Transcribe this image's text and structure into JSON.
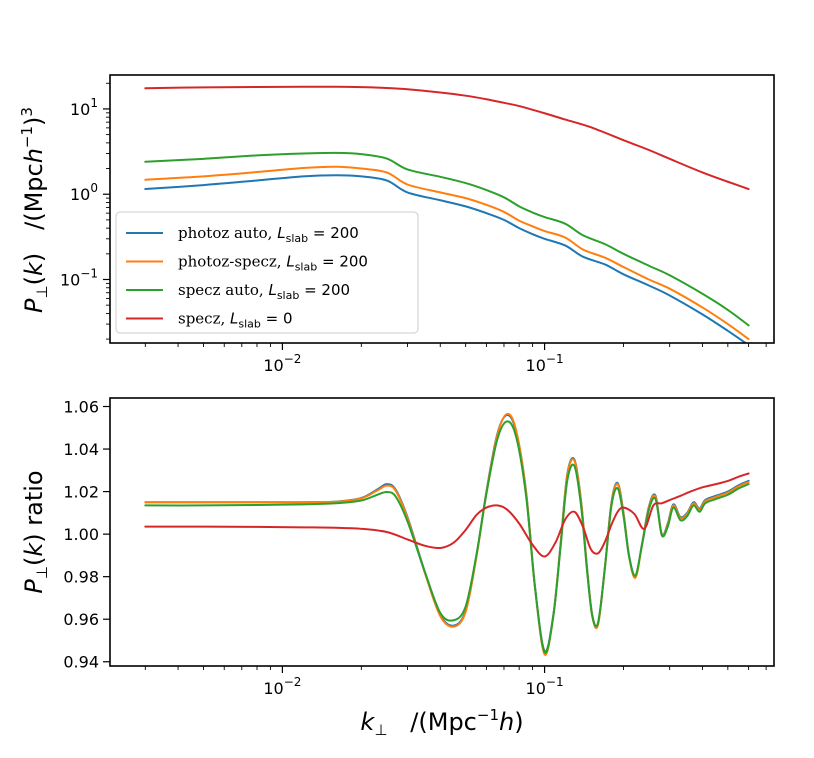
{
  "chart_data": [
    {
      "type": "line",
      "xscale": "log",
      "yscale": "log",
      "xlim": [
        0.0022,
        0.75
      ],
      "ylim": [
        0.018,
        25
      ],
      "xticks": [
        {
          "value": 0.01,
          "base": "10",
          "exp": "−2"
        },
        {
          "value": 0.1,
          "base": "10",
          "exp": "−1"
        }
      ],
      "yticks": [
        {
          "value": 10,
          "base": "10",
          "exp": "1"
        },
        {
          "value": 1,
          "base": "10",
          "exp": "0"
        },
        {
          "value": 0.1,
          "base": "10",
          "exp": "−1"
        }
      ],
      "ylabel": {
        "p": "P",
        "sub": "⊥",
        "open": "(",
        "k": "k",
        "close": ")",
        "units": "/(Mpc",
        "h": "h",
        "minus1": "−1",
        "rest": ")",
        "cube": "3"
      },
      "legend": {
        "position": "lower-left",
        "entries": [
          {
            "prefix": "photoz auto, ",
            "var": "L",
            "sub": "slab",
            "eq": " = 200",
            "color": "#1f77b4"
          },
          {
            "prefix": "photoz-specz, ",
            "var": "L",
            "sub": "slab",
            "eq": " = 200",
            "color": "#ff7f0e"
          },
          {
            "prefix": "specz auto, ",
            "var": "L",
            "sub": "slab",
            "eq": " = 200",
            "color": "#2ca02c"
          },
          {
            "prefix": "specz, ",
            "var": "L",
            "sub": "slab",
            "eq": " = 0",
            "color": "#d62728"
          }
        ]
      },
      "series": [
        {
          "name": "photoz auto",
          "color": "#1f77b4",
          "x": [
            0.003,
            0.005,
            0.008,
            0.012,
            0.016,
            0.02,
            0.025,
            0.03,
            0.04,
            0.05,
            0.06,
            0.07,
            0.08,
            0.09,
            0.1,
            0.12,
            0.14,
            0.17,
            0.2,
            0.25,
            0.3,
            0.4,
            0.5,
            0.6
          ],
          "y": [
            1.15,
            1.28,
            1.45,
            1.62,
            1.67,
            1.62,
            1.45,
            1.05,
            0.85,
            0.72,
            0.6,
            0.5,
            0.4,
            0.34,
            0.3,
            0.25,
            0.185,
            0.15,
            0.115,
            0.085,
            0.065,
            0.039,
            0.025,
            0.017
          ]
        },
        {
          "name": "photoz-specz",
          "color": "#ff7f0e",
          "x": [
            0.003,
            0.005,
            0.008,
            0.012,
            0.016,
            0.02,
            0.025,
            0.03,
            0.04,
            0.05,
            0.06,
            0.07,
            0.08,
            0.09,
            0.1,
            0.12,
            0.14,
            0.17,
            0.2,
            0.25,
            0.3,
            0.4,
            0.5,
            0.6
          ],
          "y": [
            1.48,
            1.62,
            1.82,
            2.03,
            2.1,
            2.0,
            1.8,
            1.3,
            1.05,
            0.9,
            0.75,
            0.62,
            0.49,
            0.42,
            0.37,
            0.31,
            0.225,
            0.18,
            0.14,
            0.1,
            0.078,
            0.047,
            0.03,
            0.02
          ]
        },
        {
          "name": "specz auto",
          "color": "#2ca02c",
          "x": [
            0.003,
            0.005,
            0.008,
            0.012,
            0.016,
            0.02,
            0.025,
            0.03,
            0.04,
            0.05,
            0.06,
            0.07,
            0.08,
            0.09,
            0.1,
            0.12,
            0.14,
            0.17,
            0.2,
            0.25,
            0.3,
            0.4,
            0.5,
            0.6
          ],
          "y": [
            2.4,
            2.6,
            2.85,
            3.0,
            3.05,
            2.95,
            2.62,
            1.95,
            1.6,
            1.35,
            1.12,
            0.92,
            0.72,
            0.61,
            0.54,
            0.45,
            0.33,
            0.26,
            0.2,
            0.145,
            0.112,
            0.068,
            0.044,
            0.029
          ]
        },
        {
          "name": "specz",
          "color": "#d62728",
          "x": [
            0.003,
            0.005,
            0.008,
            0.012,
            0.016,
            0.02,
            0.025,
            0.03,
            0.04,
            0.05,
            0.06,
            0.07,
            0.08,
            0.1,
            0.12,
            0.15,
            0.2,
            0.25,
            0.3,
            0.4,
            0.5,
            0.6
          ],
          "y": [
            17.5,
            17.9,
            18.1,
            18.2,
            18.2,
            18.0,
            17.6,
            17.0,
            15.6,
            14.3,
            13.0,
            11.8,
            10.8,
            8.9,
            7.5,
            6.1,
            4.3,
            3.3,
            2.6,
            1.8,
            1.4,
            1.15
          ]
        }
      ]
    },
    {
      "type": "line",
      "xscale": "log",
      "yscale": "linear",
      "xlim": [
        0.0022,
        0.75
      ],
      "ylim": [
        0.938,
        1.064
      ],
      "xticks": [
        {
          "value": 0.01,
          "base": "10",
          "exp": "−2"
        },
        {
          "value": 0.1,
          "base": "10",
          "exp": "−1"
        }
      ],
      "yticks": [
        {
          "value": 0.94,
          "label": "0.94"
        },
        {
          "value": 0.96,
          "label": "0.96"
        },
        {
          "value": 0.98,
          "label": "0.98"
        },
        {
          "value": 1.0,
          "label": "1.00"
        },
        {
          "value": 1.02,
          "label": "1.02"
        },
        {
          "value": 1.04,
          "label": "1.04"
        },
        {
          "value": 1.06,
          "label": "1.06"
        }
      ],
      "ylabel": {
        "p": "P",
        "sub": "⊥",
        "open": "(",
        "k": "k",
        "close": ")",
        "word": " ratio"
      },
      "xlabel": {
        "k": "k",
        "sub": "⊥",
        "units": "/(Mpc",
        "minus1": "−1",
        "h": "h",
        "rest": ")"
      },
      "series": [
        {
          "name": "photoz auto",
          "color": "#1f77b4",
          "x": [
            0.003,
            0.005,
            0.008,
            0.012,
            0.016,
            0.02,
            0.023,
            0.025,
            0.027,
            0.03,
            0.035,
            0.04,
            0.045,
            0.05,
            0.055,
            0.06,
            0.066,
            0.072,
            0.078,
            0.085,
            0.092,
            0.1,
            0.108,
            0.115,
            0.122,
            0.13,
            0.138,
            0.145,
            0.152,
            0.16,
            0.17,
            0.18,
            0.19,
            0.2,
            0.21,
            0.222,
            0.235,
            0.25,
            0.265,
            0.28,
            0.295,
            0.31,
            0.33,
            0.35,
            0.37,
            0.39,
            0.41,
            0.45,
            0.5,
            0.55,
            0.6
          ],
          "y": [
            1.015,
            1.015,
            1.015,
            1.015,
            1.0153,
            1.017,
            1.021,
            1.0235,
            1.021,
            1.008,
            0.982,
            0.962,
            0.957,
            0.964,
            0.99,
            1.02,
            1.047,
            1.056,
            1.048,
            1.02,
            0.975,
            0.945,
            0.962,
            0.995,
            1.028,
            1.035,
            1.015,
            0.985,
            0.962,
            0.958,
            0.985,
            1.015,
            1.024,
            1.01,
            0.99,
            0.98,
            0.995,
            1.013,
            1.018,
            1.0,
            1.005,
            1.014,
            1.008,
            1.01,
            1.015,
            1.012,
            1.016,
            1.018,
            1.02,
            1.023,
            1.025
          ]
        },
        {
          "name": "photoz-specz",
          "color": "#ff7f0e",
          "x": [
            0.003,
            0.005,
            0.008,
            0.012,
            0.016,
            0.02,
            0.023,
            0.025,
            0.027,
            0.03,
            0.035,
            0.04,
            0.045,
            0.05,
            0.055,
            0.06,
            0.066,
            0.072,
            0.078,
            0.085,
            0.092,
            0.1,
            0.108,
            0.115,
            0.122,
            0.13,
            0.138,
            0.145,
            0.152,
            0.16,
            0.17,
            0.18,
            0.19,
            0.2,
            0.21,
            0.222,
            0.235,
            0.25,
            0.265,
            0.28,
            0.295,
            0.31,
            0.33,
            0.35,
            0.37,
            0.39,
            0.41,
            0.45,
            0.5,
            0.55,
            0.6
          ],
          "y": [
            1.015,
            1.015,
            1.015,
            1.015,
            1.0152,
            1.0168,
            1.0205,
            1.0228,
            1.0205,
            1.0075,
            0.9815,
            0.9615,
            0.9565,
            0.9635,
            0.9895,
            1.0195,
            1.0465,
            1.0565,
            1.0485,
            1.0195,
            0.9745,
            0.9435,
            0.9615,
            0.9945,
            1.0275,
            1.0345,
            1.0145,
            0.9845,
            0.9615,
            0.9575,
            0.9845,
            1.0145,
            1.0235,
            1.0095,
            0.9895,
            0.9795,
            0.9945,
            1.0125,
            1.0175,
            0.9995,
            1.0045,
            1.0135,
            1.0075,
            1.0095,
            1.0145,
            1.0115,
            1.0155,
            1.0175,
            1.0195,
            1.0225,
            1.0245
          ]
        },
        {
          "name": "specz auto",
          "color": "#2ca02c",
          "x": [
            0.003,
            0.005,
            0.008,
            0.012,
            0.016,
            0.02,
            0.023,
            0.025,
            0.027,
            0.03,
            0.035,
            0.04,
            0.045,
            0.05,
            0.055,
            0.06,
            0.066,
            0.072,
            0.078,
            0.085,
            0.092,
            0.1,
            0.108,
            0.115,
            0.122,
            0.13,
            0.138,
            0.145,
            0.152,
            0.16,
            0.17,
            0.18,
            0.19,
            0.2,
            0.21,
            0.222,
            0.235,
            0.25,
            0.265,
            0.28,
            0.295,
            0.31,
            0.33,
            0.35,
            0.37,
            0.39,
            0.41,
            0.45,
            0.5,
            0.55,
            0.6
          ],
          "y": [
            1.0135,
            1.0135,
            1.0137,
            1.014,
            1.0145,
            1.0158,
            1.0185,
            1.0198,
            1.0178,
            1.006,
            0.982,
            0.963,
            0.9595,
            0.966,
            0.9905,
            1.019,
            1.0445,
            1.053,
            1.0455,
            1.018,
            0.9745,
            0.9445,
            0.9615,
            0.9935,
            1.025,
            1.032,
            1.0125,
            0.9835,
            0.9615,
            0.9585,
            0.9845,
            1.0135,
            1.0215,
            1.0085,
            0.9895,
            0.9805,
            0.9945,
            1.0115,
            1.0165,
            0.9995,
            1.0035,
            1.0125,
            1.0065,
            1.0085,
            1.0135,
            1.0105,
            1.0145,
            1.0165,
            1.0185,
            1.0215,
            1.0235
          ]
        },
        {
          "name": "specz",
          "color": "#d62728",
          "x": [
            0.003,
            0.005,
            0.008,
            0.012,
            0.016,
            0.02,
            0.025,
            0.03,
            0.035,
            0.04,
            0.045,
            0.05,
            0.055,
            0.06,
            0.066,
            0.072,
            0.08,
            0.09,
            0.1,
            0.11,
            0.12,
            0.13,
            0.14,
            0.15,
            0.16,
            0.17,
            0.18,
            0.19,
            0.2,
            0.22,
            0.24,
            0.26,
            0.28,
            0.3,
            0.33,
            0.36,
            0.4,
            0.45,
            0.5,
            0.55,
            0.6
          ],
          "y": [
            1.0035,
            1.0035,
            1.0034,
            1.0032,
            1.003,
            1.0025,
            1.001,
            0.9975,
            0.9945,
            0.9935,
            0.996,
            1.002,
            1.009,
            1.0125,
            1.0135,
            1.0115,
            1.005,
            0.995,
            0.9895,
            0.996,
            1.007,
            1.0105,
            1.0035,
            0.993,
            0.991,
            0.9965,
            1.0045,
            1.0105,
            1.0125,
            1.0095,
            1.0025,
            1.0135,
            1.0145,
            1.016,
            1.018,
            1.02,
            1.022,
            1.0235,
            1.025,
            1.027,
            1.0285
          ]
        }
      ]
    }
  ]
}
